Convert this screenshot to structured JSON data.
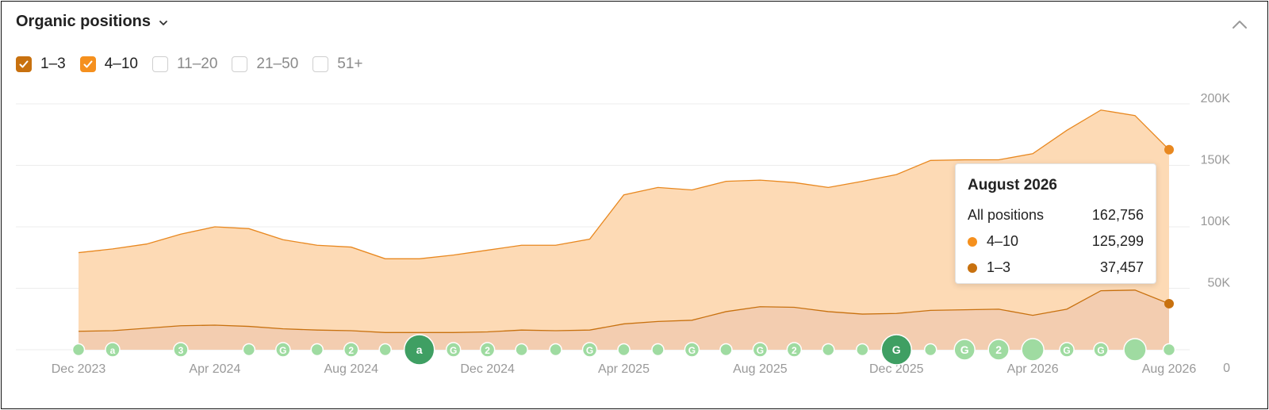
{
  "widget": {
    "title": "Organic positions",
    "title_icon": "chevron-down-icon",
    "collapse_icon": "chevron-up-icon"
  },
  "legend": {
    "items": [
      {
        "label": "1–3",
        "checked": true,
        "color": "#c8710f"
      },
      {
        "label": "4–10",
        "checked": true,
        "color": "#f5901e"
      },
      {
        "label": "11–20",
        "checked": false,
        "color": ""
      },
      {
        "label": "21–50",
        "checked": false,
        "color": ""
      },
      {
        "label": "51+",
        "checked": false,
        "color": ""
      }
    ]
  },
  "tooltip": {
    "title": "August 2026",
    "rows": [
      {
        "label": "All positions",
        "value": "162,756",
        "color": ""
      },
      {
        "label": "4–10",
        "value": "125,299",
        "color": "#f5901e"
      },
      {
        "label": "1–3",
        "value": "37,457",
        "color": "#c8710f"
      }
    ]
  },
  "colors": {
    "area_4_10": "#fddab5",
    "line_4_10": "#e88820",
    "area_1_3": "#f3cdb0",
    "line_1_3": "#c8710f",
    "grid": "#ececec",
    "tick_text": "#999999",
    "marker": "#9fdba1",
    "marker_dark": "#3f9f63"
  },
  "chart_data": {
    "type": "area",
    "stacked": true,
    "x": [
      "2023-12",
      "2024-01",
      "2024-02",
      "2024-03",
      "2024-04",
      "2024-05",
      "2024-06",
      "2024-07",
      "2024-08",
      "2024-09",
      "2024-10",
      "2024-11",
      "2024-12",
      "2025-01",
      "2025-02",
      "2025-03",
      "2025-04",
      "2025-05",
      "2025-06",
      "2025-07",
      "2025-08",
      "2025-09",
      "2025-10",
      "2025-11",
      "2025-12",
      "2026-01",
      "2026-02",
      "2026-03",
      "2026-04",
      "2026-05",
      "2026-06",
      "2026-07",
      "2026-08"
    ],
    "x_tick_labels": [
      "Dec 2023",
      "Apr 2024",
      "Aug 2024",
      "Dec 2024",
      "Apr 2025",
      "Aug 2025",
      "Dec 2025",
      "Apr 2026",
      "Aug 2026"
    ],
    "x_tick_index": [
      0,
      4,
      8,
      12,
      16,
      20,
      24,
      28,
      32
    ],
    "y_tick_labels": [
      "0",
      "50K",
      "100K",
      "150K",
      "200K"
    ],
    "y_ticks": [
      0,
      50000,
      100000,
      150000,
      200000
    ],
    "ylim": [
      0,
      200000
    ],
    "y_axis_side": "right",
    "grid": true,
    "series": [
      {
        "name": "1–3",
        "values": [
          15000,
          15500,
          17500,
          19500,
          20000,
          19000,
          17000,
          16000,
          15500,
          14000,
          14000,
          14000,
          14500,
          16000,
          15500,
          16000,
          21000,
          23000,
          24000,
          31000,
          35000,
          34500,
          31000,
          29000,
          29500,
          32000,
          32500,
          33000,
          28000,
          33000,
          48000,
          48500,
          37457
        ]
      },
      {
        "name": "4–10",
        "values": [
          64000,
          66500,
          68500,
          74500,
          80000,
          79500,
          72500,
          69000,
          68000,
          60000,
          60000,
          63000,
          66500,
          69000,
          69500,
          74000,
          105000,
          109000,
          106000,
          106000,
          103000,
          101500,
          101000,
          108000,
          113000,
          122000,
          122000,
          121500,
          131500,
          145500,
          147000,
          142000,
          125299
        ]
      }
    ],
    "event_markers": [
      {
        "x": "2023-12",
        "label": ""
      },
      {
        "x": "2024-01",
        "label": "a"
      },
      {
        "x": "2024-03",
        "label": "3"
      },
      {
        "x": "2024-05",
        "label": ""
      },
      {
        "x": "2024-06",
        "label": "G"
      },
      {
        "x": "2024-07",
        "label": ""
      },
      {
        "x": "2024-08",
        "label": "2"
      },
      {
        "x": "2024-09",
        "label": ""
      },
      {
        "x": "2024-10",
        "label": "a"
      },
      {
        "x": "2024-11",
        "label": "G"
      },
      {
        "x": "2024-12",
        "label": "2"
      },
      {
        "x": "2025-01",
        "label": ""
      },
      {
        "x": "2025-02",
        "label": ""
      },
      {
        "x": "2025-03",
        "label": "G"
      },
      {
        "x": "2025-04",
        "label": ""
      },
      {
        "x": "2025-05",
        "label": ""
      },
      {
        "x": "2025-06",
        "label": "G"
      },
      {
        "x": "2025-07",
        "label": ""
      },
      {
        "x": "2025-08",
        "label": "G"
      },
      {
        "x": "2025-09",
        "label": "2"
      },
      {
        "x": "2025-10",
        "label": ""
      },
      {
        "x": "2025-11",
        "label": ""
      },
      {
        "x": "2025-12",
        "label": "G"
      },
      {
        "x": "2026-01",
        "label": ""
      },
      {
        "x": "2026-02",
        "label": "G"
      },
      {
        "x": "2026-03",
        "label": "2"
      },
      {
        "x": "2026-04",
        "label": ""
      },
      {
        "x": "2026-05",
        "label": "G"
      },
      {
        "x": "2026-06",
        "label": "G"
      },
      {
        "x": "2026-07",
        "label": ""
      },
      {
        "x": "2026-08",
        "label": ""
      }
    ]
  }
}
